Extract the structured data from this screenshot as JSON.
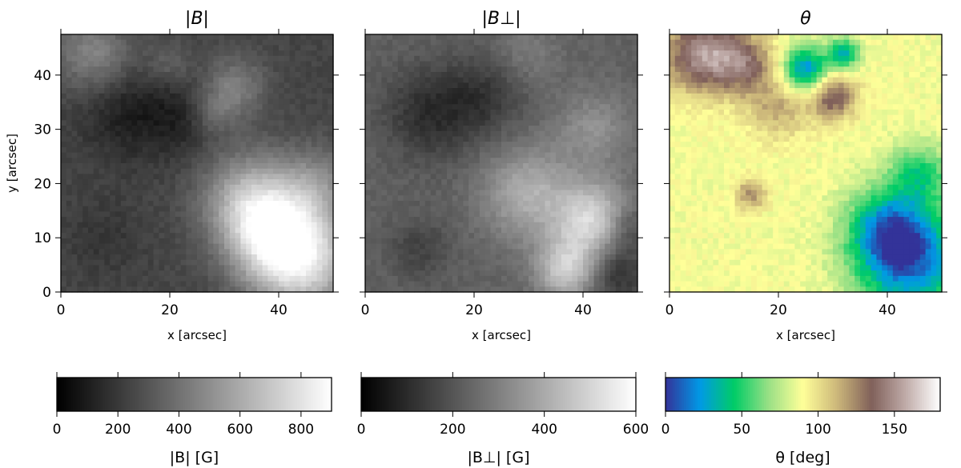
{
  "chart_data": [
    {
      "type": "heatmap",
      "title": "|B|",
      "xlabel": "x [arcsec]",
      "ylabel": "y [arcsec]",
      "xlim": [
        0,
        50
      ],
      "ylim": [
        0,
        47.5
      ],
      "xticks": [
        "0",
        "20",
        "40"
      ],
      "xtick_values": [
        0,
        20,
        40
      ],
      "yticks": [
        "0",
        "10",
        "20",
        "30",
        "40"
      ],
      "ytick_values": [
        0,
        10,
        20,
        30,
        40
      ],
      "colormap": "gray",
      "colorbar": {
        "label": "|B|  [G]",
        "range": [
          0,
          900
        ],
        "ticks": [
          "0",
          "200",
          "400",
          "600",
          "800"
        ],
        "tick_values": [
          0,
          200,
          400,
          600,
          800
        ],
        "colors": [
          "#000000",
          "#ffffff"
        ]
      },
      "field": {
        "base": 0.27,
        "blobs": [
          {
            "x": 44,
            "y": 6,
            "r": 7,
            "v": 0.62
          },
          {
            "x": 38,
            "y": 12,
            "r": 6,
            "v": 0.45
          },
          {
            "x": 34,
            "y": 18,
            "r": 6,
            "v": 0.3
          },
          {
            "x": 47,
            "y": 20,
            "r": 5,
            "v": 0.22
          },
          {
            "x": 32,
            "y": 38,
            "r": 4,
            "v": 0.22
          },
          {
            "x": 28,
            "y": 33,
            "r": 3,
            "v": 0.15
          },
          {
            "x": 6,
            "y": 44,
            "r": 5,
            "v": 0.25
          },
          {
            "x": 20,
            "y": 42,
            "r": 3,
            "v": 0.12
          },
          {
            "x": 12,
            "y": 33,
            "r": 6,
            "v": -0.14
          },
          {
            "x": 22,
            "y": 32,
            "r": 5,
            "v": -0.12
          },
          {
            "x": 8,
            "y": 10,
            "r": 5,
            "v": -0.06
          }
        ]
      }
    },
    {
      "type": "heatmap",
      "title": "|B⊥|",
      "xlabel": "x [arcsec]",
      "xlim": [
        0,
        50
      ],
      "ylim": [
        0,
        47.5
      ],
      "xticks": [
        "0",
        "20",
        "40"
      ],
      "xtick_values": [
        0,
        20,
        40
      ],
      "colormap": "gray",
      "colorbar": {
        "label": "|B⊥|  [G]",
        "range": [
          0,
          600
        ],
        "ticks": [
          "0",
          "200",
          "400",
          "600"
        ],
        "tick_values": [
          0,
          200,
          400,
          600
        ],
        "colors": [
          "#000000",
          "#ffffff"
        ]
      },
      "field": {
        "base": 0.38,
        "blobs": [
          {
            "x": 42,
            "y": 13,
            "r": 5,
            "v": 0.45
          },
          {
            "x": 37,
            "y": 4,
            "r": 4,
            "v": 0.4
          },
          {
            "x": 30,
            "y": 18,
            "r": 6,
            "v": 0.3
          },
          {
            "x": 42,
            "y": 30,
            "r": 5,
            "v": 0.18
          },
          {
            "x": 46,
            "y": 4,
            "r": 4,
            "v": -0.22
          },
          {
            "x": 48,
            "y": 12,
            "r": 3,
            "v": -0.18
          },
          {
            "x": 12,
            "y": 33,
            "r": 6,
            "v": -0.2
          },
          {
            "x": 22,
            "y": 36,
            "r": 5,
            "v": -0.15
          },
          {
            "x": 10,
            "y": 8,
            "r": 4,
            "v": -0.12
          },
          {
            "x": 30,
            "y": 44,
            "r": 4,
            "v": 0.1
          }
        ]
      }
    },
    {
      "type": "heatmap",
      "title": "θ",
      "xlabel": "x [arcsec]",
      "xlim": [
        0,
        50
      ],
      "ylim": [
        0,
        47.5
      ],
      "xticks": [
        "0",
        "20",
        "40"
      ],
      "xtick_values": [
        0,
        20,
        40
      ],
      "colormap": "terrain",
      "colorbar": {
        "label": "θ  [deg]",
        "range": [
          0,
          180
        ],
        "ticks": [
          "0",
          "50",
          "100",
          "150"
        ],
        "tick_values": [
          0,
          50,
          100,
          150
        ],
        "colors": [
          "#333399",
          "#0099e6",
          "#00cc66",
          "#99e085",
          "#ffff99",
          "#ccb77a",
          "#80605a",
          "#c0aca9",
          "#ffffff"
        ]
      },
      "field": {
        "base": 0.49,
        "blobs": [
          {
            "x": 44,
            "y": 6,
            "r": 7,
            "v": -0.42
          },
          {
            "x": 40,
            "y": 12,
            "r": 5,
            "v": -0.25
          },
          {
            "x": 46,
            "y": 22,
            "r": 4,
            "v": -0.2
          },
          {
            "x": 25,
            "y": 41,
            "r": 3,
            "v": -0.38
          },
          {
            "x": 32,
            "y": 44,
            "r": 2,
            "v": -0.3
          },
          {
            "x": 6,
            "y": 44,
            "r": 5,
            "v": 0.35
          },
          {
            "x": 14,
            "y": 42,
            "r": 4,
            "v": 0.22
          },
          {
            "x": 30,
            "y": 36,
            "r": 3,
            "v": 0.28
          },
          {
            "x": 20,
            "y": 34,
            "r": 4,
            "v": 0.15
          },
          {
            "x": 15,
            "y": 18,
            "r": 2,
            "v": 0.2
          }
        ]
      }
    }
  ]
}
